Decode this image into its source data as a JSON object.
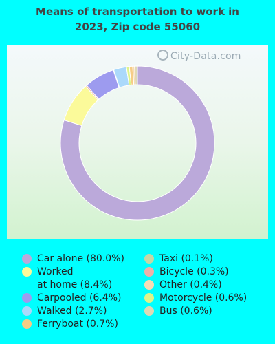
{
  "chart_data": {
    "type": "pie",
    "title": "Means of transportation to work in 2023, Zip code 55060",
    "watermark": "City-Data.com",
    "legend_position": "bottom",
    "slices": [
      {
        "label": "Car alone (80.0%)",
        "value": 80.0,
        "color": "#bba9da"
      },
      {
        "label": "Worked at home (8.4%)",
        "label_lines": [
          "Worked",
          "at home (8.4%)"
        ],
        "value": 8.4,
        "color": "#fbfa9a"
      },
      {
        "label": "Bicycle (0.3%)",
        "value": 0.3,
        "color": "#efb0a9"
      },
      {
        "label": "Carpooled (6.4%)",
        "value": 6.4,
        "color": "#9d9bef"
      },
      {
        "label": "Taxi (0.1%)",
        "value": 0.1,
        "color": "#c5d7a6"
      },
      {
        "label": "Walked (2.7%)",
        "value": 2.7,
        "color": "#abd9fb"
      },
      {
        "label": "Motorcycle (0.6%)",
        "value": 0.6,
        "color": "#ddf48a"
      },
      {
        "label": "Ferryboat (0.7%)",
        "value": 0.7,
        "color": "#f6cc86"
      },
      {
        "label": "Other (0.4%)",
        "value": 0.4,
        "color": "#f7dcb5"
      },
      {
        "label": "Bus (0.6%)",
        "value": 0.6,
        "color": "#dfd9b5"
      }
    ],
    "legend_order_left": [
      0,
      1,
      3,
      5,
      7
    ],
    "legend_order_right": [
      4,
      2,
      8,
      6,
      9
    ]
  }
}
